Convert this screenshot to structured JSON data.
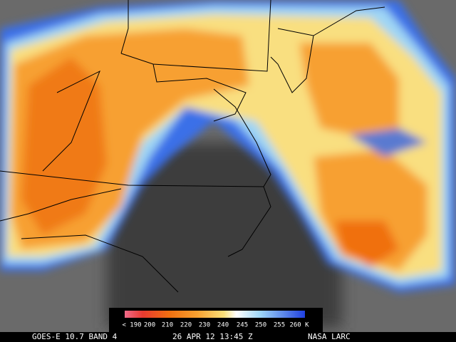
{
  "colorbar": {
    "labels": [
      "< 190",
      "200",
      "210",
      "220",
      "230",
      "240",
      "245",
      "250",
      "255",
      "260 K"
    ]
  },
  "footer": {
    "satellite": "GOES-E 10.7 BAND 4",
    "time": "26 APR 12 13:45 Z",
    "source": "NASA LARC"
  }
}
